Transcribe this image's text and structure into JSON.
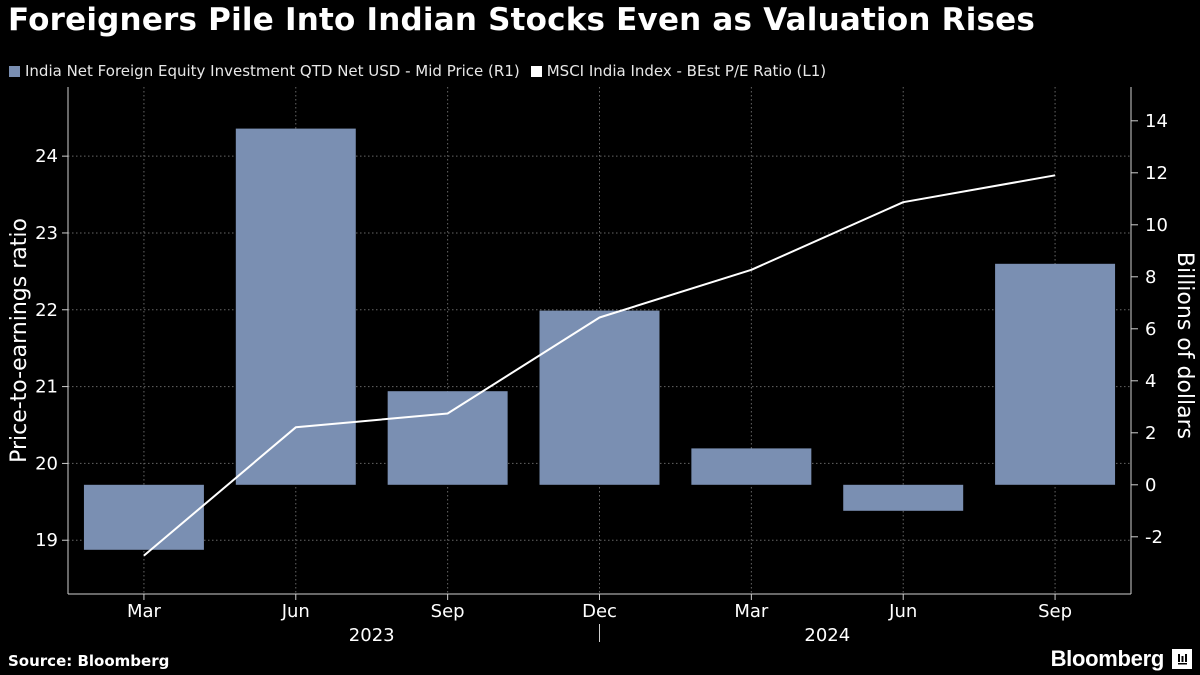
{
  "title": "Foreigners Pile Into Indian Stocks Even as Valuation Rises",
  "legend": [
    {
      "label": "India Net Foreign Equity Investment QTD Net USD - Mid Price (R1)",
      "color": "#7a8fb2"
    },
    {
      "label": "MSCI India Index - BEst P/E Ratio (L1)",
      "color": "#ffffff"
    }
  ],
  "source": "Source: Bloomberg",
  "brand": "Bloomberg",
  "colors": {
    "bar": "#7a8fb2",
    "line": "#ffffff",
    "background": "#000000",
    "grid": "#666666",
    "axis": "#cfcfcf"
  },
  "chart_data": {
    "type": "bar+line",
    "title": "Foreigners Pile Into Indian Stocks Even as Valuation Rises",
    "categories": [
      "Mar",
      "Jun",
      "Sep",
      "Dec",
      "Mar",
      "Jun",
      "Sep"
    ],
    "year_labels": [
      {
        "label": "2023",
        "at_category": 1.5
      },
      {
        "label": "2024",
        "at_category": 4.5
      }
    ],
    "series": [
      {
        "name": "India Net Foreign Equity Investment QTD Net USD - Mid Price (R1)",
        "type": "bar",
        "axis": "right",
        "values": [
          -2.5,
          13.7,
          3.6,
          6.7,
          1.4,
          -1.0,
          8.5
        ]
      },
      {
        "name": "MSCI India Index - BEst P/E Ratio (L1)",
        "type": "line",
        "axis": "left",
        "values": [
          18.8,
          20.47,
          20.65,
          21.9,
          22.52,
          23.4,
          23.75
        ]
      }
    ],
    "ylabel_left": "Price-to-earnings ratio",
    "ylabel_right": "Billions of dollars",
    "yticks_left": [
      19,
      20,
      21,
      22,
      23,
      24
    ],
    "yticks_right": [
      -2,
      0,
      2,
      4,
      6,
      8,
      10,
      12,
      14
    ],
    "ylim_left": [
      18.3,
      24.9
    ],
    "ylim_right": [
      -4.2,
      15.3
    ],
    "grid": true
  }
}
